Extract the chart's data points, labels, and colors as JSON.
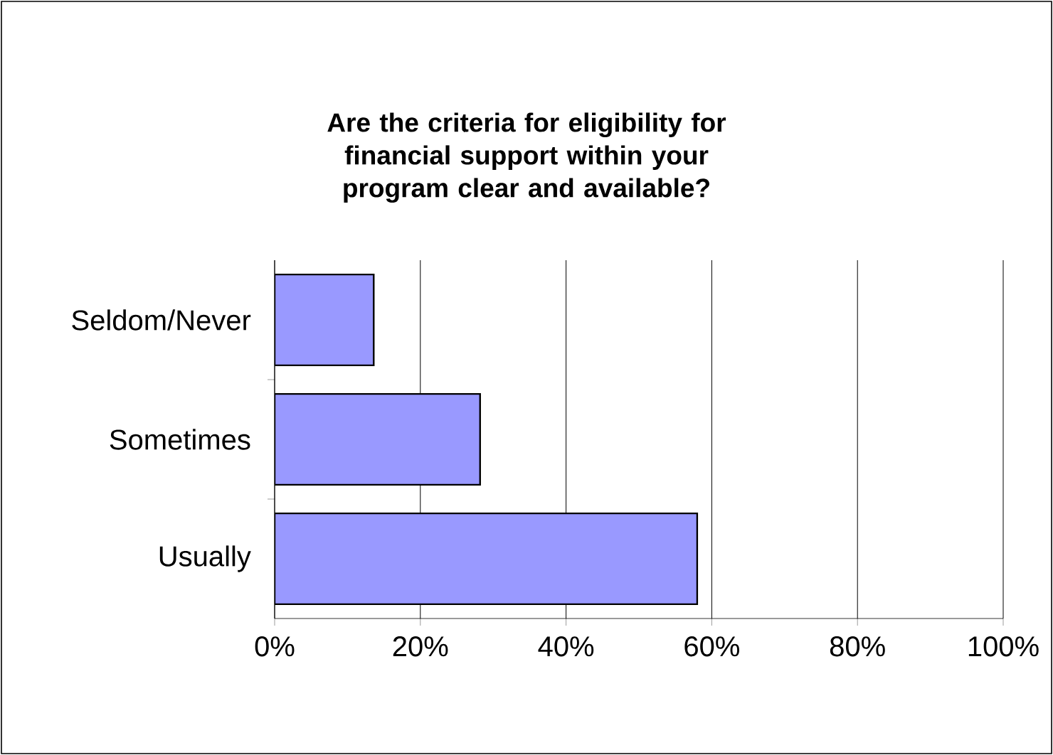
{
  "chart_data": {
    "type": "bar",
    "orientation": "horizontal",
    "title": "Are the criteria for eligibility for financial support within your program clear and available?",
    "categories": [
      "Seldom/Never",
      "Sometimes",
      "Usually"
    ],
    "values": [
      13.6,
      28.2,
      58.0
    ],
    "color": "#9999ff",
    "xlim": [
      0,
      100
    ],
    "xticks": [
      {
        "value": 0,
        "label": "0%"
      },
      {
        "value": 20,
        "label": "20%"
      },
      {
        "value": 40,
        "label": "40%"
      },
      {
        "value": 60,
        "label": "60%"
      },
      {
        "value": 80,
        "label": "80%"
      },
      {
        "value": 100,
        "label": "100%"
      }
    ],
    "grid": "x"
  }
}
